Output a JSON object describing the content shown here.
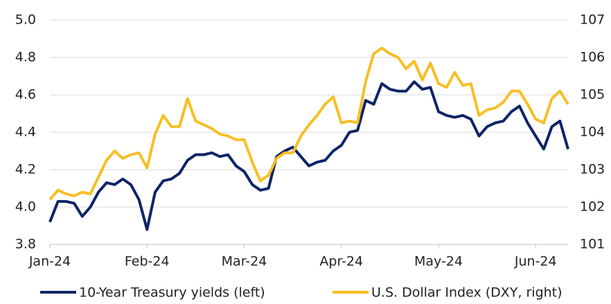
{
  "chart_data": {
    "type": "line",
    "categories": [
      "Jan-24",
      null,
      null,
      null,
      null,
      null,
      null,
      null,
      null,
      null,
      null,
      null,
      "Feb-24",
      null,
      null,
      null,
      null,
      null,
      null,
      null,
      null,
      null,
      null,
      null,
      "Mar-24",
      null,
      null,
      null,
      null,
      null,
      null,
      null,
      null,
      null,
      null,
      null,
      "Apr-24",
      null,
      null,
      null,
      null,
      null,
      null,
      null,
      null,
      null,
      null,
      null,
      "May-24",
      null,
      null,
      null,
      null,
      null,
      null,
      null,
      null,
      null,
      null,
      null,
      "Jun-24",
      null,
      null,
      null,
      null
    ],
    "series": [
      {
        "name": "10-Year Treasury yields (left)",
        "color": "#0d2566",
        "axis": "y",
        "values": [
          3.92,
          4.03,
          4.03,
          4.02,
          3.95,
          4.0,
          4.08,
          4.13,
          4.12,
          4.15,
          4.12,
          4.04,
          3.88,
          4.08,
          4.14,
          4.15,
          4.18,
          4.25,
          4.28,
          4.28,
          4.29,
          4.27,
          4.28,
          4.22,
          4.19,
          4.12,
          4.09,
          4.1,
          4.27,
          4.3,
          4.32,
          4.27,
          4.22,
          4.24,
          4.25,
          4.3,
          4.33,
          4.4,
          4.41,
          4.57,
          4.55,
          4.66,
          4.63,
          4.62,
          4.62,
          4.67,
          4.63,
          4.64,
          4.51,
          4.49,
          4.48,
          4.49,
          4.47,
          4.38,
          4.43,
          4.45,
          4.46,
          4.51,
          4.54,
          4.45,
          4.38,
          4.31,
          4.43,
          4.46,
          4.31
        ]
      },
      {
        "name": "U.S. Dollar Index (DXY, right)",
        "color": "#f7bf26",
        "axis": "y2",
        "values": [
          102.2,
          102.45,
          102.35,
          102.3,
          102.4,
          102.35,
          102.8,
          103.25,
          103.5,
          103.3,
          103.4,
          103.45,
          103.05,
          103.95,
          104.45,
          104.15,
          104.15,
          104.9,
          104.3,
          104.2,
          104.1,
          103.95,
          103.9,
          103.8,
          103.8,
          103.2,
          102.7,
          102.85,
          103.3,
          103.45,
          103.45,
          103.9,
          104.2,
          104.45,
          104.75,
          104.95,
          104.25,
          104.3,
          104.25,
          105.35,
          106.1,
          106.25,
          106.1,
          106.0,
          105.7,
          105.9,
          105.4,
          105.85,
          105.3,
          105.2,
          105.6,
          105.25,
          105.3,
          104.45,
          104.6,
          104.65,
          104.8,
          105.1,
          105.1,
          104.75,
          104.35,
          104.25,
          104.9,
          105.1,
          104.75
        ]
      }
    ],
    "ylim": [
      3.8,
      5.0
    ],
    "yticks": [
      3.8,
      {
        "value": 4.0,
        "label": "4.0"
      },
      4.2,
      4.4,
      4.6,
      4.8,
      {
        "value": 5.0,
        "label": "5.0"
      }
    ],
    "y2lim": [
      101,
      107
    ],
    "y2ticks": [
      101,
      102,
      103,
      104,
      105,
      106,
      107
    ],
    "grid": true
  }
}
